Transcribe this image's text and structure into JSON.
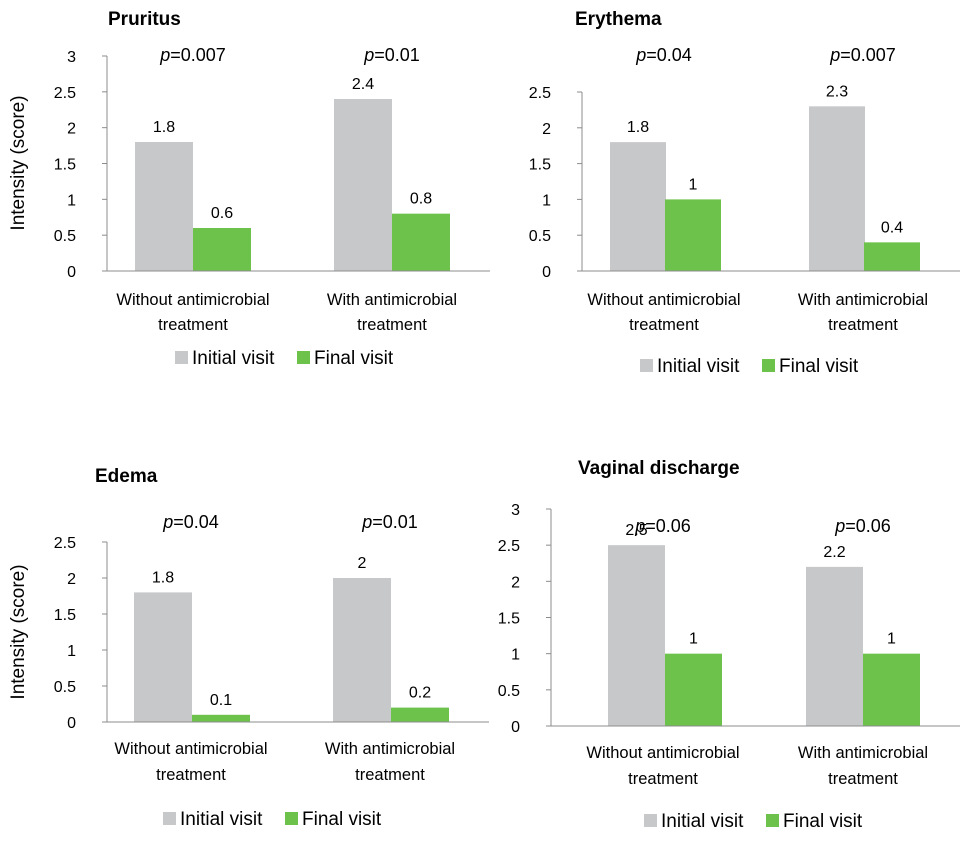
{
  "colors": {
    "initial": "#c7c8ca",
    "final": "#6cc24a",
    "axis": "#8c8c8c"
  },
  "chart_data": [
    {
      "type": "bar",
      "title": "Pruritus",
      "ylabel": "Intensity (score)",
      "ylim": [
        0,
        3
      ],
      "yticks": [
        "0",
        "0.5",
        "1",
        "1.5",
        "2",
        "2.5",
        "3"
      ],
      "categories": [
        [
          "Without antimicrobial",
          "treatment"
        ],
        [
          "With antimicrobial",
          "treatment"
        ]
      ],
      "series": [
        {
          "name": "Initial visit",
          "values": [
            1.8,
            2.4
          ],
          "labels": [
            "1.8",
            "2.4"
          ]
        },
        {
          "name": "Final visit",
          "values": [
            0.6,
            0.8
          ],
          "labels": [
            "0.6",
            "0.8"
          ]
        }
      ],
      "pvalues": [
        "=0.007",
        "=0.01"
      ],
      "legend": "bottom"
    },
    {
      "type": "bar",
      "title": "Erythema",
      "ylabel": "",
      "ylim": [
        0,
        2.5
      ],
      "yticks": [
        "0",
        "0.5",
        "1",
        "1.5",
        "2",
        "2.5"
      ],
      "categories": [
        [
          "Without antimicrobial",
          "treatment"
        ],
        [
          "With antimicrobial",
          "treatment"
        ]
      ],
      "series": [
        {
          "name": "Initial visit",
          "values": [
            1.8,
            2.3
          ],
          "labels": [
            "1.8",
            "2.3"
          ]
        },
        {
          "name": "Final visit",
          "values": [
            1.0,
            0.4
          ],
          "labels": [
            "1",
            "0.4"
          ]
        }
      ],
      "pvalues": [
        "=0.04",
        "=0.007"
      ],
      "legend": "bottom"
    },
    {
      "type": "bar",
      "title": "Edema",
      "ylabel": "Intensity (score)",
      "ylim": [
        0,
        2.5
      ],
      "yticks": [
        "0",
        "0.5",
        "1",
        "1.5",
        "2",
        "2.5"
      ],
      "categories": [
        [
          "Without antimicrobial",
          "treatment"
        ],
        [
          "With antimicrobial",
          "treatment"
        ]
      ],
      "series": [
        {
          "name": "Initial visit",
          "values": [
            1.8,
            2.0
          ],
          "labels": [
            "1.8",
            "2"
          ]
        },
        {
          "name": "Final visit",
          "values": [
            0.1,
            0.2
          ],
          "labels": [
            "0.1",
            "0.2"
          ]
        }
      ],
      "pvalues": [
        "=0.04",
        "=0.01"
      ],
      "legend": "bottom"
    },
    {
      "type": "bar",
      "title": "Vaginal discharge",
      "ylabel": "",
      "ylim": [
        0,
        3
      ],
      "yticks": [
        "0",
        "0.5",
        "1",
        "1.5",
        "2",
        "2.5",
        "3"
      ],
      "categories": [
        [
          "Without antimicrobial",
          "treatment"
        ],
        [
          "With antimicrobial",
          "treatment"
        ]
      ],
      "series": [
        {
          "name": "Initial visit",
          "values": [
            2.5,
            2.2
          ],
          "labels": [
            "2.5",
            "2.2"
          ]
        },
        {
          "name": "Final visit",
          "values": [
            1.0,
            1.0
          ],
          "labels": [
            "1",
            "1"
          ]
        }
      ],
      "pvalues": [
        "=0.06",
        "=0.06"
      ],
      "legend": "bottom"
    }
  ]
}
